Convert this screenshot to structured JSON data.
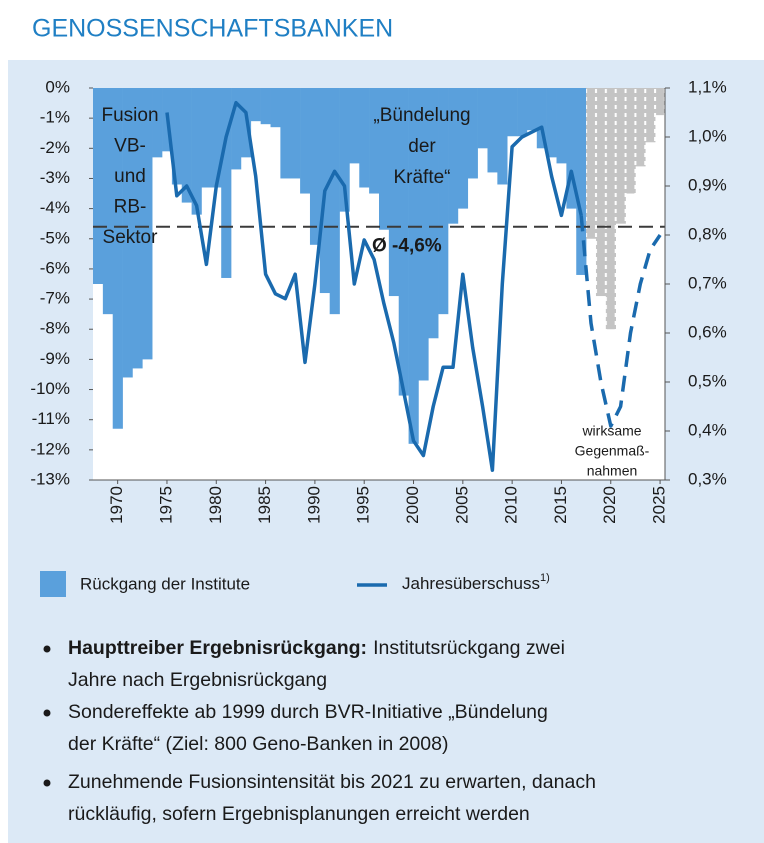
{
  "chart_data": {
    "type": "bar",
    "title": "GENOSSENSCHAFTSBANKEN",
    "xlim": [
      1967.5,
      2025.5
    ],
    "xticks": [
      1970,
      1975,
      1980,
      1985,
      1990,
      1995,
      2000,
      2005,
      2010,
      2015,
      2020,
      2025
    ],
    "ylim": [
      -13,
      0
    ],
    "yticks": [
      {
        "value": 0,
        "label": "0%"
      },
      {
        "value": -1,
        "label": "-1%"
      },
      {
        "value": -2,
        "label": "-2%"
      },
      {
        "value": -3,
        "label": "-3%"
      },
      {
        "value": -4,
        "label": "-4%"
      },
      {
        "value": -5,
        "label": "-5%"
      },
      {
        "value": -6,
        "label": "-6%"
      },
      {
        "value": -7,
        "label": "-7%"
      },
      {
        "value": -8,
        "label": "-8%"
      },
      {
        "value": -9,
        "label": "-9%"
      },
      {
        "value": -10,
        "label": "-10%"
      },
      {
        "value": -11,
        "label": "-11%"
      },
      {
        "value": -12,
        "label": "-12%"
      },
      {
        "value": -13,
        "label": "-13%"
      }
    ],
    "y2lim": [
      0.3,
      1.1
    ],
    "y2ticks": [
      {
        "value": 0.3,
        "label": "0,3%"
      },
      {
        "value": 0.4,
        "label": "0,4%"
      },
      {
        "value": 0.5,
        "label": "0,5%"
      },
      {
        "value": 0.6,
        "label": "0,6%"
      },
      {
        "value": 0.7,
        "label": "0,7%"
      },
      {
        "value": 0.8,
        "label": "0,8%"
      },
      {
        "value": 0.9,
        "label": "0,9%"
      },
      {
        "value": 1.0,
        "label": "1,0%"
      },
      {
        "value": 1.1,
        "label": "1,1%"
      }
    ],
    "series": [
      {
        "name": "Rückgang der Institute",
        "type": "bar",
        "color": "#5aa0dc",
        "x": [
          1968,
          1969,
          1970,
          1971,
          1972,
          1973,
          1974,
          1975,
          1976,
          1977,
          1978,
          1979,
          1980,
          1981,
          1982,
          1983,
          1984,
          1985,
          1986,
          1987,
          1988,
          1989,
          1990,
          1991,
          1992,
          1993,
          1994,
          1995,
          1996,
          1997,
          1998,
          1999,
          2000,
          2001,
          2002,
          2003,
          2004,
          2005,
          2006,
          2007,
          2008,
          2009,
          2010,
          2011,
          2012,
          2013,
          2014,
          2015,
          2016,
          2017
        ],
        "values": [
          -6.5,
          -7.5,
          -11.3,
          -9.6,
          -9.3,
          -9.0,
          -2.3,
          -2.1,
          -3.2,
          -3.8,
          -4.2,
          -3.3,
          -3.3,
          -6.3,
          -2.7,
          -2.3,
          -1.1,
          -1.2,
          -1.3,
          -3.0,
          -3.0,
          -3.5,
          -5.2,
          -6.8,
          -7.5,
          -4.1,
          -2.5,
          -3.3,
          -3.5,
          -4.7,
          -6.9,
          -10.2,
          -11.8,
          -9.7,
          -8.3,
          -7.5,
          -4.5,
          -4.0,
          -3.0,
          -2.0,
          -2.8,
          -3.2,
          -1.6,
          -1.6,
          -1.4,
          -2.0,
          -2.3,
          -2.5,
          -4.0,
          -6.2
        ]
      },
      {
        "type": "bar",
        "color": "#c4c4c4",
        "hatched": true,
        "x": [
          2018,
          2019,
          2020,
          2021,
          2022,
          2023,
          2024,
          2025
        ],
        "values": [
          -5.0,
          -6.9,
          -8.0,
          -4.5,
          -3.5,
          -2.6,
          -1.8,
          -0.9
        ]
      },
      {
        "name": "Jahresüberschuss",
        "footnote_mark": "1)",
        "type": "line",
        "axis": "y2",
        "color": "#1a6aae",
        "x": [
          1975,
          1976,
          1977,
          1978,
          1979,
          1980,
          1981,
          1982,
          1983,
          1984,
          1985,
          1986,
          1987,
          1988,
          1989,
          1990,
          1991,
          1992,
          1993,
          1994,
          1995,
          1996,
          1997,
          1998,
          1999,
          2000,
          2001,
          2002,
          2003,
          2004,
          2005,
          2006,
          2007,
          2008,
          2009,
          2010,
          2011,
          2012,
          2013,
          2014,
          2015,
          2016,
          2017
        ],
        "values": [
          1.05,
          0.88,
          0.9,
          0.86,
          0.74,
          0.9,
          1.0,
          1.07,
          1.05,
          0.92,
          0.72,
          0.68,
          0.67,
          0.72,
          0.54,
          0.7,
          0.89,
          0.93,
          0.9,
          0.7,
          0.79,
          0.75,
          0.66,
          0.58,
          0.48,
          0.38,
          0.35,
          0.45,
          0.53,
          0.53,
          0.72,
          0.57,
          0.45,
          0.32,
          0.7,
          0.98,
          1.0,
          1.01,
          1.02,
          0.92,
          0.84,
          0.93,
          0.84
        ]
      },
      {
        "type": "line",
        "axis": "y2",
        "color": "#1a6aae",
        "dashed": true,
        "x": [
          2017,
          2018,
          2019,
          2020,
          2021,
          2022,
          2023,
          2024,
          2025
        ],
        "values": [
          0.84,
          0.62,
          0.5,
          0.41,
          0.45,
          0.6,
          0.7,
          0.77,
          0.8
        ]
      }
    ],
    "average": {
      "value": -4.6,
      "label": "Ø -4,6%"
    },
    "annotations": [
      {
        "lines": [
          "Fusion",
          "VB-",
          "und",
          "RB-",
          "Sektor"
        ]
      },
      {
        "lines": [
          "„Bündelung",
          "der",
          "Kräfte“"
        ]
      },
      {
        "lines": [
          "wirksame",
          "Gegenmaß-",
          "nahmen"
        ]
      }
    ],
    "bullets": [
      {
        "lines": [
          {
            "bold": "Haupttreiber Ergebnisrückgang:",
            "text": "Institutsrückgang zwei"
          },
          "Jahre nach Ergebnisrückgang"
        ]
      },
      {
        "lines": [
          "Sondereffekte ab 1999 durch BVR-Initiative „Bündelung",
          "der Kräfte“ (Ziel: 800 Geno-Banken in 2008)"
        ]
      },
      {
        "lines": [
          "Zunehmende Fusionsintensität bis 2021 zu erwarten, danach",
          "rückläufig, sofern Ergebnisplanungen erreicht werden"
        ]
      }
    ]
  }
}
